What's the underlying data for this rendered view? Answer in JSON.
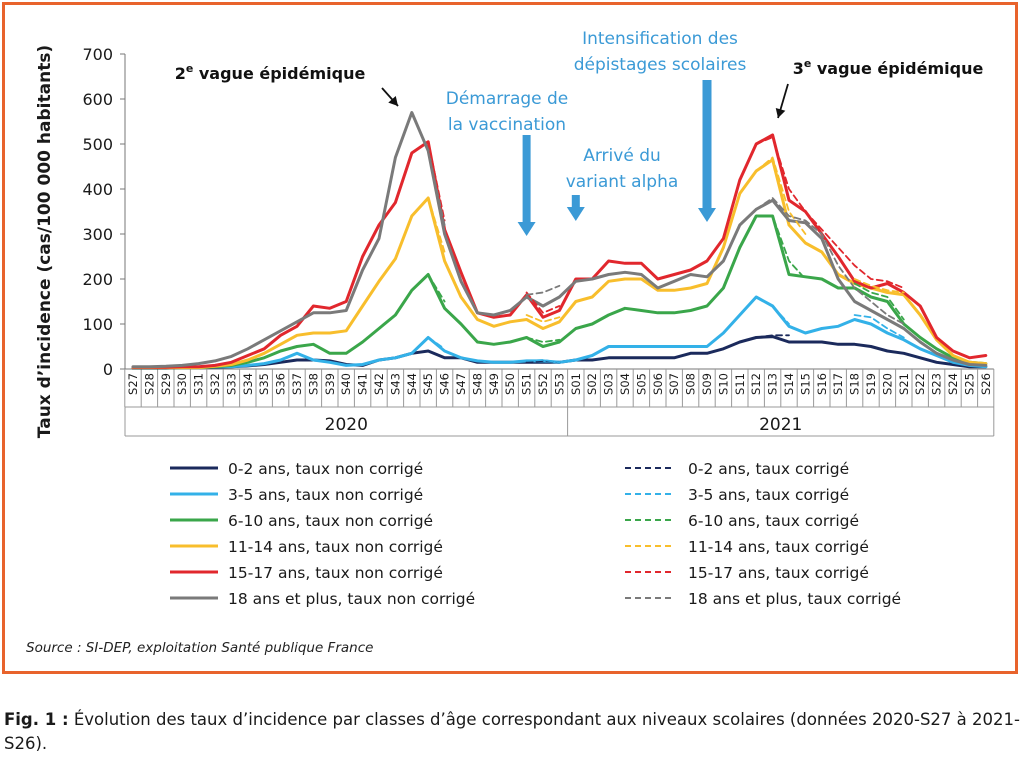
{
  "chart_data": {
    "type": "line",
    "ylabel": "Taux d’incidence (cas/100 000 habitants)",
    "ylim": [
      0,
      700
    ],
    "yticks": [
      0,
      100,
      200,
      300,
      400,
      500,
      600,
      700
    ],
    "grid": false,
    "categories": [
      "S27",
      "S28",
      "S29",
      "S30",
      "S31",
      "S32",
      "S33",
      "S34",
      "S35",
      "S36",
      "S37",
      "S38",
      "S39",
      "S40",
      "S41",
      "S42",
      "S43",
      "S44",
      "S45",
      "S46",
      "S47",
      "S48",
      "S49",
      "S50",
      "S51",
      "S52",
      "S53",
      "S01",
      "S02",
      "S03",
      "S04",
      "S05",
      "S06",
      "S07",
      "S08",
      "S09",
      "S10",
      "S11",
      "S12",
      "S13",
      "S14",
      "S15",
      "S16",
      "S17",
      "S18",
      "S19",
      "S20",
      "S21",
      "S22",
      "S23",
      "S24",
      "S25",
      "S26"
    ],
    "year_labels": [
      "2020",
      "2021"
    ],
    "series": [
      {
        "name": "0-2 ans, taux non corrigé",
        "color": "#1b2a5c",
        "dashed": false,
        "values": [
          2,
          2,
          2,
          3,
          3,
          4,
          5,
          7,
          10,
          15,
          20,
          20,
          18,
          10,
          8,
          20,
          25,
          35,
          40,
          25,
          25,
          15,
          15,
          15,
          15,
          15,
          15,
          20,
          20,
          25,
          25,
          25,
          25,
          25,
          35,
          35,
          45,
          60,
          70,
          72,
          60,
          60,
          60,
          55,
          55,
          50,
          40,
          35,
          25,
          15,
          10,
          5,
          5
        ]
      },
      {
        "name": "3-5 ans, taux non corrigé",
        "color": "#33b1e8",
        "dashed": false,
        "values": [
          3,
          3,
          3,
          3,
          3,
          5,
          5,
          8,
          12,
          20,
          35,
          20,
          15,
          8,
          10,
          20,
          25,
          35,
          70,
          40,
          25,
          18,
          15,
          15,
          18,
          18,
          15,
          20,
          30,
          50,
          50,
          50,
          50,
          50,
          50,
          50,
          80,
          120,
          160,
          140,
          95,
          80,
          90,
          95,
          110,
          100,
          80,
          65,
          45,
          30,
          15,
          8,
          5
        ]
      },
      {
        "name": "6-10 ans, taux non corrigé",
        "color": "#3aa64a",
        "dashed": false,
        "values": [
          3,
          3,
          3,
          3,
          3,
          5,
          8,
          15,
          25,
          40,
          50,
          55,
          35,
          35,
          60,
          90,
          120,
          175,
          210,
          135,
          100,
          60,
          55,
          60,
          70,
          50,
          60,
          90,
          100,
          120,
          135,
          130,
          125,
          125,
          130,
          140,
          180,
          270,
          340,
          340,
          210,
          205,
          200,
          180,
          180,
          160,
          150,
          100,
          70,
          45,
          25,
          15,
          12
        ]
      },
      {
        "name": "11-14 ans, taux non corrigé",
        "color": "#f8be2c",
        "dashed": false,
        "values": [
          3,
          3,
          3,
          3,
          3,
          6,
          10,
          20,
          35,
          55,
          75,
          80,
          80,
          85,
          140,
          195,
          245,
          340,
          380,
          240,
          160,
          110,
          95,
          105,
          110,
          90,
          105,
          150,
          160,
          195,
          200,
          200,
          175,
          175,
          180,
          190,
          270,
          390,
          440,
          465,
          320,
          280,
          260,
          210,
          190,
          180,
          170,
          165,
          120,
          65,
          30,
          15,
          12
        ]
      },
      {
        "name": "15-17 ans, taux non corrigé",
        "color": "#e1272d",
        "dashed": false,
        "values": [
          4,
          4,
          4,
          5,
          5,
          8,
          15,
          30,
          45,
          75,
          95,
          140,
          135,
          150,
          250,
          320,
          370,
          480,
          505,
          310,
          215,
          125,
          115,
          120,
          165,
          115,
          130,
          200,
          200,
          240,
          235,
          235,
          200,
          210,
          220,
          240,
          290,
          420,
          500,
          520,
          375,
          350,
          300,
          250,
          195,
          180,
          190,
          170,
          140,
          70,
          40,
          25,
          30
        ]
      },
      {
        "name": "18 ans et plus, taux non corrigé",
        "color": "#7a7a7a",
        "dashed": false,
        "values": [
          5,
          5,
          6,
          8,
          12,
          18,
          28,
          45,
          65,
          85,
          105,
          125,
          125,
          130,
          220,
          290,
          470,
          570,
          485,
          300,
          195,
          125,
          120,
          130,
          160,
          140,
          160,
          195,
          200,
          210,
          215,
          210,
          180,
          195,
          210,
          205,
          240,
          320,
          355,
          375,
          330,
          325,
          290,
          200,
          150,
          130,
          110,
          90,
          60,
          35,
          20,
          10,
          8
        ]
      },
      {
        "name": "0-2 ans, taux corrigé",
        "color": "#1b2a5c",
        "dashed": true,
        "values": [
          null,
          null,
          null,
          null,
          null,
          null,
          null,
          null,
          null,
          null,
          null,
          null,
          null,
          null,
          null,
          null,
          null,
          null,
          40,
          25,
          null,
          null,
          null,
          null,
          15,
          18,
          15,
          null,
          null,
          null,
          null,
          null,
          null,
          null,
          null,
          null,
          null,
          null,
          70,
          75,
          75,
          null,
          null,
          null,
          null,
          null,
          null,
          null,
          null,
          null,
          null,
          null,
          null
        ]
      },
      {
        "name": "3-5 ans, taux corrigé",
        "color": "#33b1e8",
        "dashed": true,
        "values": [
          null,
          null,
          null,
          null,
          null,
          null,
          null,
          null,
          null,
          null,
          null,
          null,
          null,
          null,
          null,
          null,
          null,
          null,
          70,
          45,
          null,
          null,
          null,
          null,
          18,
          20,
          15,
          null,
          null,
          null,
          null,
          null,
          null,
          null,
          null,
          null,
          null,
          null,
          160,
          140,
          100,
          null,
          null,
          null,
          120,
          115,
          90,
          70,
          null,
          null,
          null,
          null,
          null
        ]
      },
      {
        "name": "6-10 ans, taux corrigé",
        "color": "#3aa64a",
        "dashed": true,
        "values": [
          null,
          null,
          null,
          null,
          null,
          null,
          null,
          null,
          null,
          null,
          null,
          null,
          null,
          null,
          null,
          null,
          null,
          null,
          210,
          150,
          null,
          null,
          null,
          null,
          70,
          60,
          65,
          null,
          null,
          null,
          null,
          null,
          null,
          null,
          null,
          null,
          null,
          null,
          340,
          340,
          240,
          200,
          null,
          null,
          190,
          170,
          160,
          110,
          null,
          null,
          null,
          null,
          null
        ]
      },
      {
        "name": "11-14 ans, taux corrigé",
        "color": "#f8be2c",
        "dashed": true,
        "values": [
          null,
          null,
          null,
          null,
          null,
          null,
          null,
          null,
          null,
          null,
          null,
          null,
          null,
          null,
          null,
          null,
          null,
          null,
          380,
          260,
          null,
          null,
          null,
          null,
          120,
          105,
          115,
          null,
          null,
          null,
          null,
          null,
          null,
          null,
          null,
          null,
          null,
          null,
          440,
          470,
          350,
          300,
          null,
          null,
          200,
          185,
          175,
          170,
          null,
          null,
          null,
          null,
          null
        ]
      },
      {
        "name": "15-17 ans, taux corrigé",
        "color": "#e1272d",
        "dashed": true,
        "values": [
          null,
          null,
          null,
          null,
          null,
          null,
          null,
          null,
          null,
          null,
          null,
          null,
          null,
          null,
          null,
          null,
          null,
          null,
          505,
          330,
          null,
          null,
          null,
          null,
          170,
          125,
          140,
          null,
          null,
          null,
          null,
          null,
          null,
          null,
          null,
          null,
          null,
          null,
          500,
          515,
          400,
          350,
          310,
          270,
          230,
          200,
          195,
          180,
          null,
          null,
          null,
          null,
          null
        ]
      },
      {
        "name": "18 ans et plus, taux corrigé",
        "color": "#7a7a7a",
        "dashed": true,
        "values": [
          null,
          null,
          null,
          null,
          null,
          null,
          null,
          null,
          null,
          null,
          null,
          null,
          null,
          null,
          null,
          null,
          null,
          null,
          485,
          320,
          null,
          null,
          null,
          null,
          165,
          170,
          185,
          null,
          null,
          null,
          null,
          null,
          null,
          null,
          null,
          null,
          null,
          null,
          355,
          380,
          340,
          330,
          300,
          230,
          180,
          150,
          120,
          100,
          null,
          null,
          null,
          null,
          null
        ]
      }
    ],
    "annotations": [
      {
        "text_before": "2",
        "sup": "e",
        "text_after": " vague épidémique",
        "style": "dark",
        "week_index": 17
      },
      {
        "lines": [
          "Démarrage de",
          "la vaccination"
        ],
        "style": "blue",
        "week_index": 24
      },
      {
        "lines": [
          "Arrivé du",
          "variant alpha"
        ],
        "style": "blue",
        "week_index": 27
      },
      {
        "lines": [
          "Intensification des",
          "dépistages scolaires"
        ],
        "style": "blue",
        "week_index": 35
      },
      {
        "text_before": "3",
        "sup": "e",
        "text_after": " vague épidémique",
        "style": "dark",
        "week_index": 38
      }
    ]
  },
  "source": "Source : SI-DEP, exploitation Santé publique France",
  "caption": {
    "label": "Fig. 1 :",
    "text": " Évolution des taux d’incidence par classes d’âge correspondant aux niveaux scolaires (données 2020-S27 à 2021-S26)."
  }
}
